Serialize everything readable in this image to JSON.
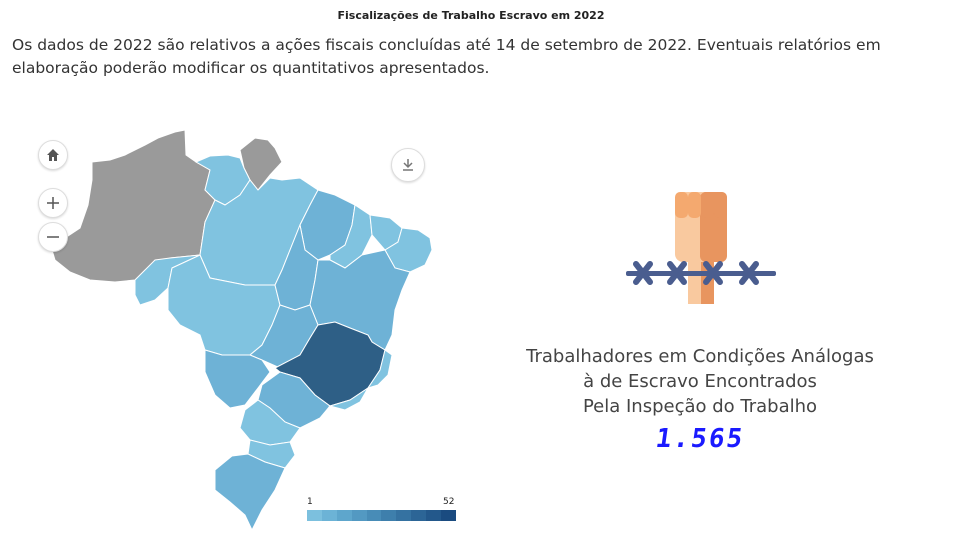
{
  "header": {
    "title": "Fiscalizações de Trabalho Escravo em 2022",
    "subtitle": "Os dados de 2022 são relativos a ações fiscais concluídas até 14 de setembro de 2022. Eventuais relatórios em elaboração poderão modificar os quantitativos apresentados."
  },
  "map": {
    "controls": {
      "home_icon": "home-icon",
      "zoom_in_icon": "plus-icon",
      "zoom_out_icon": "minus-icon",
      "download_icon": "download-icon"
    },
    "legend": {
      "min": "1",
      "max": "52",
      "colors": [
        "#7cc0de",
        "#6cb3d6",
        "#5ea6cc",
        "#5399c2",
        "#488cb7",
        "#3e7fac",
        "#3572a1",
        "#2c6596",
        "#23588b",
        "#1a4b80"
      ]
    },
    "colors": {
      "no_data": "#9a9a9a",
      "lightest": "#80c3e0",
      "light": "#6eb2d6",
      "medium": "#5ea2c9",
      "darkest": "#2e5f86"
    }
  },
  "stat": {
    "label_line1": "Trabalhadores em Condições Análogas",
    "label_line2": "à de Escravo Encontrados",
    "label_line3": "Pela Inspeção do Trabalho",
    "value": "1.565",
    "icon": "raised-fist-chain-icon"
  }
}
